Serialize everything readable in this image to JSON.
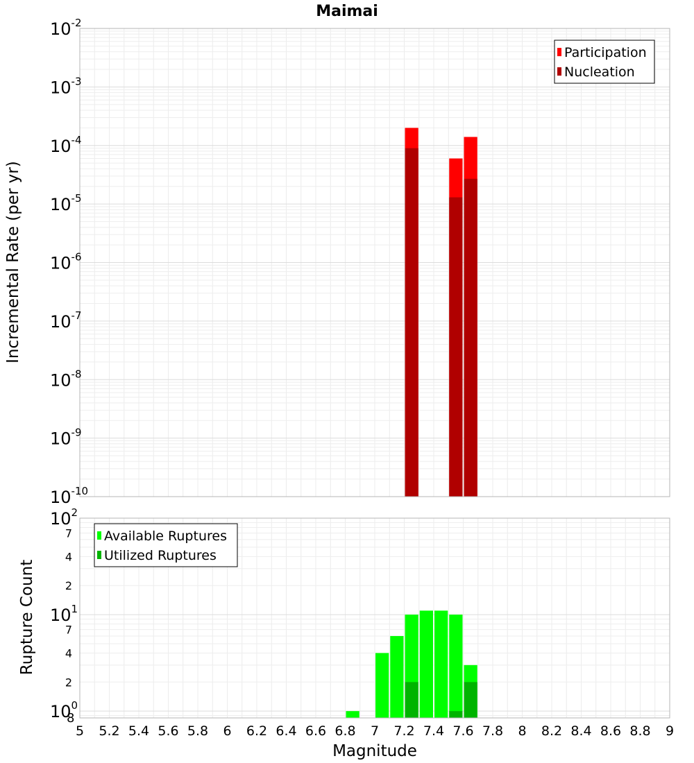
{
  "chart_data": [
    {
      "type": "bar",
      "title": "Maimai",
      "xlabel": "",
      "ylabel": "Incremental Rate (per yr)",
      "yscale": "log",
      "xlim": [
        5,
        9
      ],
      "ylim": [
        1e-10,
        0.01
      ],
      "y_tick_labels": [
        {
          "base": "10",
          "exp": "-10"
        },
        {
          "base": "10",
          "exp": "-9"
        },
        {
          "base": "10",
          "exp": "-8"
        },
        {
          "base": "10",
          "exp": "-7"
        },
        {
          "base": "10",
          "exp": "-6"
        },
        {
          "base": "10",
          "exp": "-5"
        },
        {
          "base": "10",
          "exp": "-4"
        },
        {
          "base": "10",
          "exp": "-3"
        },
        {
          "base": "10",
          "exp": "-2"
        }
      ],
      "grid": true,
      "legend_position": "top-right",
      "series": [
        {
          "name": "Participation",
          "color": "#ff0000",
          "x": [
            7.25,
            7.55,
            7.65
          ],
          "values": [
            0.0002,
            6e-05,
            0.00014
          ]
        },
        {
          "name": "Nucleation",
          "color": "#b00000",
          "x": [
            7.25,
            7.55,
            7.65
          ],
          "values": [
            9e-05,
            1.3e-05,
            2.7e-05
          ]
        }
      ]
    },
    {
      "type": "bar",
      "title": "",
      "xlabel": "Magnitude",
      "ylabel": "Rupture Count",
      "yscale": "log",
      "xlim": [
        5,
        9
      ],
      "ylim": [
        0.85,
        100
      ],
      "x_tick_labels": [
        "5",
        "5.2",
        "5.4",
        "5.6",
        "5.8",
        "6",
        "6.2",
        "6.4",
        "6.6",
        "6.8",
        "7",
        "7.2",
        "7.4",
        "7.6",
        "7.8",
        "8",
        "8.2",
        "8.4",
        "8.6",
        "8.8",
        "9"
      ],
      "y_tick_labels": [
        {
          "base": "10",
          "exp": "0"
        },
        {
          "base": "10",
          "exp": "1"
        },
        {
          "base": "10",
          "exp": "2"
        }
      ],
      "y_minor_labels": [
        "2",
        "4",
        "7",
        "2",
        "4",
        "7"
      ],
      "y_corner_label": "8",
      "grid": true,
      "legend_position": "top-left",
      "series": [
        {
          "name": "Available Ruptures",
          "color": "#00ff00",
          "x": [
            6.85,
            7.05,
            7.15,
            7.25,
            7.35,
            7.45,
            7.55,
            7.65
          ],
          "values": [
            1,
            4,
            6,
            10,
            11,
            11,
            10,
            3
          ]
        },
        {
          "name": "Utilized Ruptures",
          "color": "#00b400",
          "x": [
            7.25,
            7.55,
            7.65
          ],
          "values": [
            2,
            1,
            2
          ]
        }
      ]
    }
  ]
}
